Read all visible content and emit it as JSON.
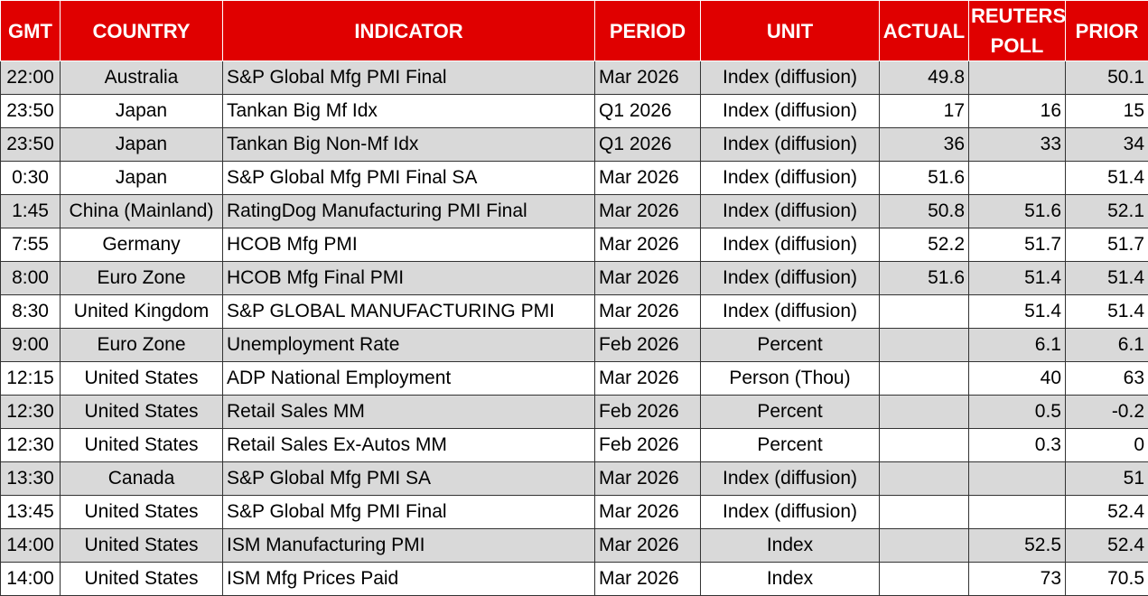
{
  "headers": {
    "gmt": "GMT",
    "country": "COUNTRY",
    "indicator": "INDICATOR",
    "period": "PERIOD",
    "unit": "UNIT",
    "actual": "ACTUAL",
    "poll": "REUTERS POLL",
    "prior": "PRIOR"
  },
  "colors": {
    "header_bg": "#e00000",
    "header_text": "#ffffff",
    "row_shade": "#d9d9d9",
    "row_plain": "#ffffff"
  },
  "rows": [
    {
      "gmt": "22:00",
      "country": "Australia",
      "indicator": "S&P Global Mfg PMI Final",
      "period": "Mar 2026",
      "unit": "Index (diffusion)",
      "actual": "49.8",
      "poll": "",
      "prior": "50.1"
    },
    {
      "gmt": "23:50",
      "country": "Japan",
      "indicator": "Tankan Big Mf Idx",
      "period": "Q1 2026",
      "unit": "Index (diffusion)",
      "actual": "17",
      "poll": "16",
      "prior": "15"
    },
    {
      "gmt": "23:50",
      "country": "Japan",
      "indicator": "Tankan Big Non-Mf Idx",
      "period": "Q1 2026",
      "unit": "Index (diffusion)",
      "actual": "36",
      "poll": "33",
      "prior": "34"
    },
    {
      "gmt": "0:30",
      "country": "Japan",
      "indicator": "S&P Global Mfg PMI Final SA",
      "period": "Mar 2026",
      "unit": "Index (diffusion)",
      "actual": "51.6",
      "poll": "",
      "prior": "51.4"
    },
    {
      "gmt": "1:45",
      "country": "China (Mainland)",
      "indicator": "RatingDog Manufacturing PMI Final",
      "period": "Mar 2026",
      "unit": "Index (diffusion)",
      "actual": "50.8",
      "poll": "51.6",
      "prior": "52.1"
    },
    {
      "gmt": "7:55",
      "country": "Germany",
      "indicator": "HCOB Mfg PMI",
      "period": "Mar 2026",
      "unit": "Index (diffusion)",
      "actual": "52.2",
      "poll": "51.7",
      "prior": "51.7"
    },
    {
      "gmt": "8:00",
      "country": "Euro Zone",
      "indicator": "HCOB Mfg Final PMI",
      "period": "Mar 2026",
      "unit": "Index (diffusion)",
      "actual": "51.6",
      "poll": "51.4",
      "prior": "51.4"
    },
    {
      "gmt": "8:30",
      "country": "United Kingdom",
      "indicator": "S&P GLOBAL MANUFACTURING PMI",
      "period": "Mar 2026",
      "unit": "Index (diffusion)",
      "actual": "",
      "poll": "51.4",
      "prior": "51.4"
    },
    {
      "gmt": "9:00",
      "country": "Euro Zone",
      "indicator": "Unemployment Rate",
      "period": "Feb 2026",
      "unit": "Percent",
      "actual": "",
      "poll": "6.1",
      "prior": "6.1"
    },
    {
      "gmt": "12:15",
      "country": "United States",
      "indicator": "ADP National Employment",
      "period": "Mar 2026",
      "unit": "Person (Thou)",
      "actual": "",
      "poll": "40",
      "prior": "63"
    },
    {
      "gmt": "12:30",
      "country": "United States",
      "indicator": "Retail Sales MM",
      "period": "Feb 2026",
      "unit": "Percent",
      "actual": "",
      "poll": "0.5",
      "prior": "-0.2"
    },
    {
      "gmt": "12:30",
      "country": "United States",
      "indicator": "Retail Sales Ex-Autos MM",
      "period": "Feb 2026",
      "unit": "Percent",
      "actual": "",
      "poll": "0.3",
      "prior": "0"
    },
    {
      "gmt": "13:30",
      "country": "Canada",
      "indicator": "S&P Global Mfg PMI SA",
      "period": "Mar 2026",
      "unit": "Index (diffusion)",
      "actual": "",
      "poll": "",
      "prior": "51"
    },
    {
      "gmt": "13:45",
      "country": "United States",
      "indicator": "S&P Global Mfg PMI Final",
      "period": "Mar 2026",
      "unit": "Index (diffusion)",
      "actual": "",
      "poll": "",
      "prior": "52.4"
    },
    {
      "gmt": "14:00",
      "country": "United States",
      "indicator": "ISM Manufacturing PMI",
      "period": "Mar 2026",
      "unit": "Index",
      "actual": "",
      "poll": "52.5",
      "prior": "52.4"
    },
    {
      "gmt": "14:00",
      "country": "United States",
      "indicator": "ISM Mfg Prices Paid",
      "period": "Mar 2026",
      "unit": "Index",
      "actual": "",
      "poll": "73",
      "prior": "70.5"
    }
  ]
}
